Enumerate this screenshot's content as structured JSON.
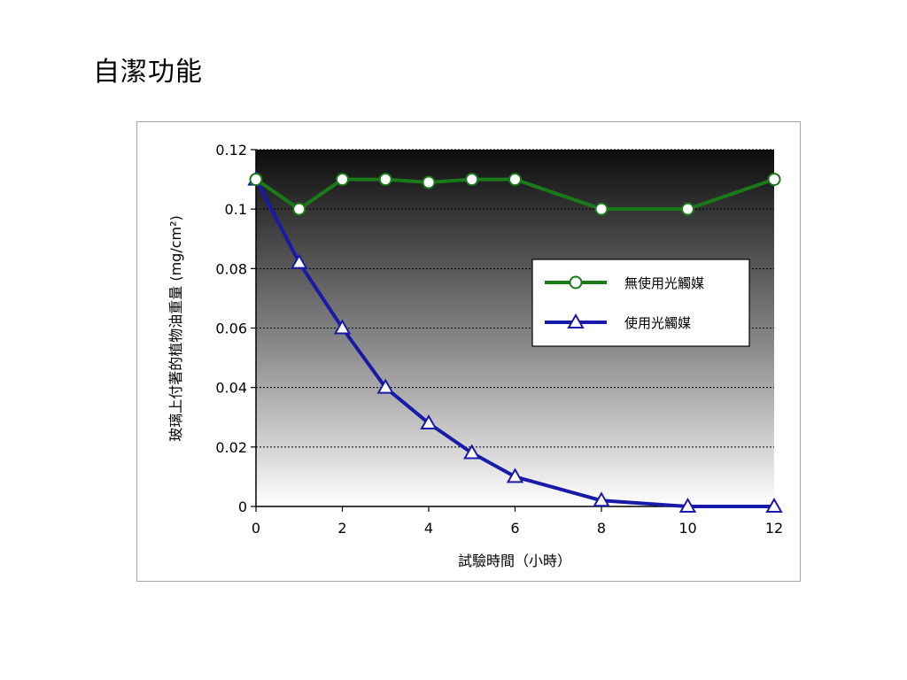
{
  "slide": {
    "title": "自潔功能"
  },
  "chart_data": {
    "type": "line",
    "x": [
      0,
      1,
      2,
      3,
      4,
      5,
      6,
      8,
      10,
      12
    ],
    "series": [
      {
        "name": "無使用光觸媒",
        "marker": "circle",
        "color": "#1a7a1a",
        "values": [
          0.11,
          0.1,
          0.11,
          0.11,
          0.109,
          0.11,
          0.11,
          0.1,
          0.1,
          0.11
        ]
      },
      {
        "name": "使用光觸媒",
        "marker": "triangle",
        "color": "#1a1aa8",
        "values": [
          0.11,
          0.082,
          0.06,
          0.04,
          0.028,
          0.018,
          0.01,
          0.002,
          0.0,
          0.0
        ]
      }
    ],
    "xlabel": "試驗時間（小時）",
    "ylabel": "玻璃上付著的植物油重量 (mg/cm²)",
    "xlim": [
      0,
      12
    ],
    "ylim": [
      0,
      0.12
    ],
    "xticks": [
      "0",
      "2",
      "4",
      "6",
      "8",
      "10",
      "12"
    ],
    "xtick_values": [
      0,
      2,
      4,
      6,
      8,
      10,
      12
    ],
    "yticks": [
      "0",
      "0.02",
      "0.04",
      "0.06",
      "0.08",
      "0.1",
      "0.12"
    ],
    "ytick_values": [
      0,
      0.02,
      0.04,
      0.06,
      0.08,
      0.1,
      0.12
    ],
    "grid": true,
    "legend_position": "right"
  }
}
